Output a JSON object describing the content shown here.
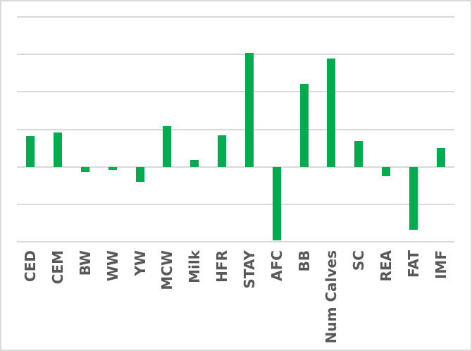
{
  "chart": {
    "background": "#ffffff",
    "border_color": "#d9d9d9",
    "bar_color": "#00ac4e",
    "gridline_color": "#d9d9d9",
    "label_color": "#595959"
  },
  "chart_data": {
    "type": "bar",
    "title": "",
    "xlabel": "",
    "ylabel": "",
    "categories": [
      "CED",
      "CEM",
      "BW",
      "WW",
      "YW",
      "MCW",
      "Milk",
      "HFR",
      "STAY",
      "AFC",
      "BB",
      "Num Calves",
      "SC",
      "REA",
      "FAT",
      "IMF"
    ],
    "values": [
      0.82,
      0.92,
      -0.14,
      -0.07,
      -0.39,
      1.08,
      0.19,
      0.84,
      3.05,
      -1.95,
      2.21,
      2.89,
      0.7,
      -0.24,
      -1.68,
      0.51
    ],
    "ylim": [
      -2,
      4
    ],
    "gridline_interval": 1,
    "y_tick_labels": [],
    "grid": true,
    "legend": false,
    "legend_position": "none",
    "bar_orientation": "vertical",
    "x_label_rotation_degrees": 90
  }
}
